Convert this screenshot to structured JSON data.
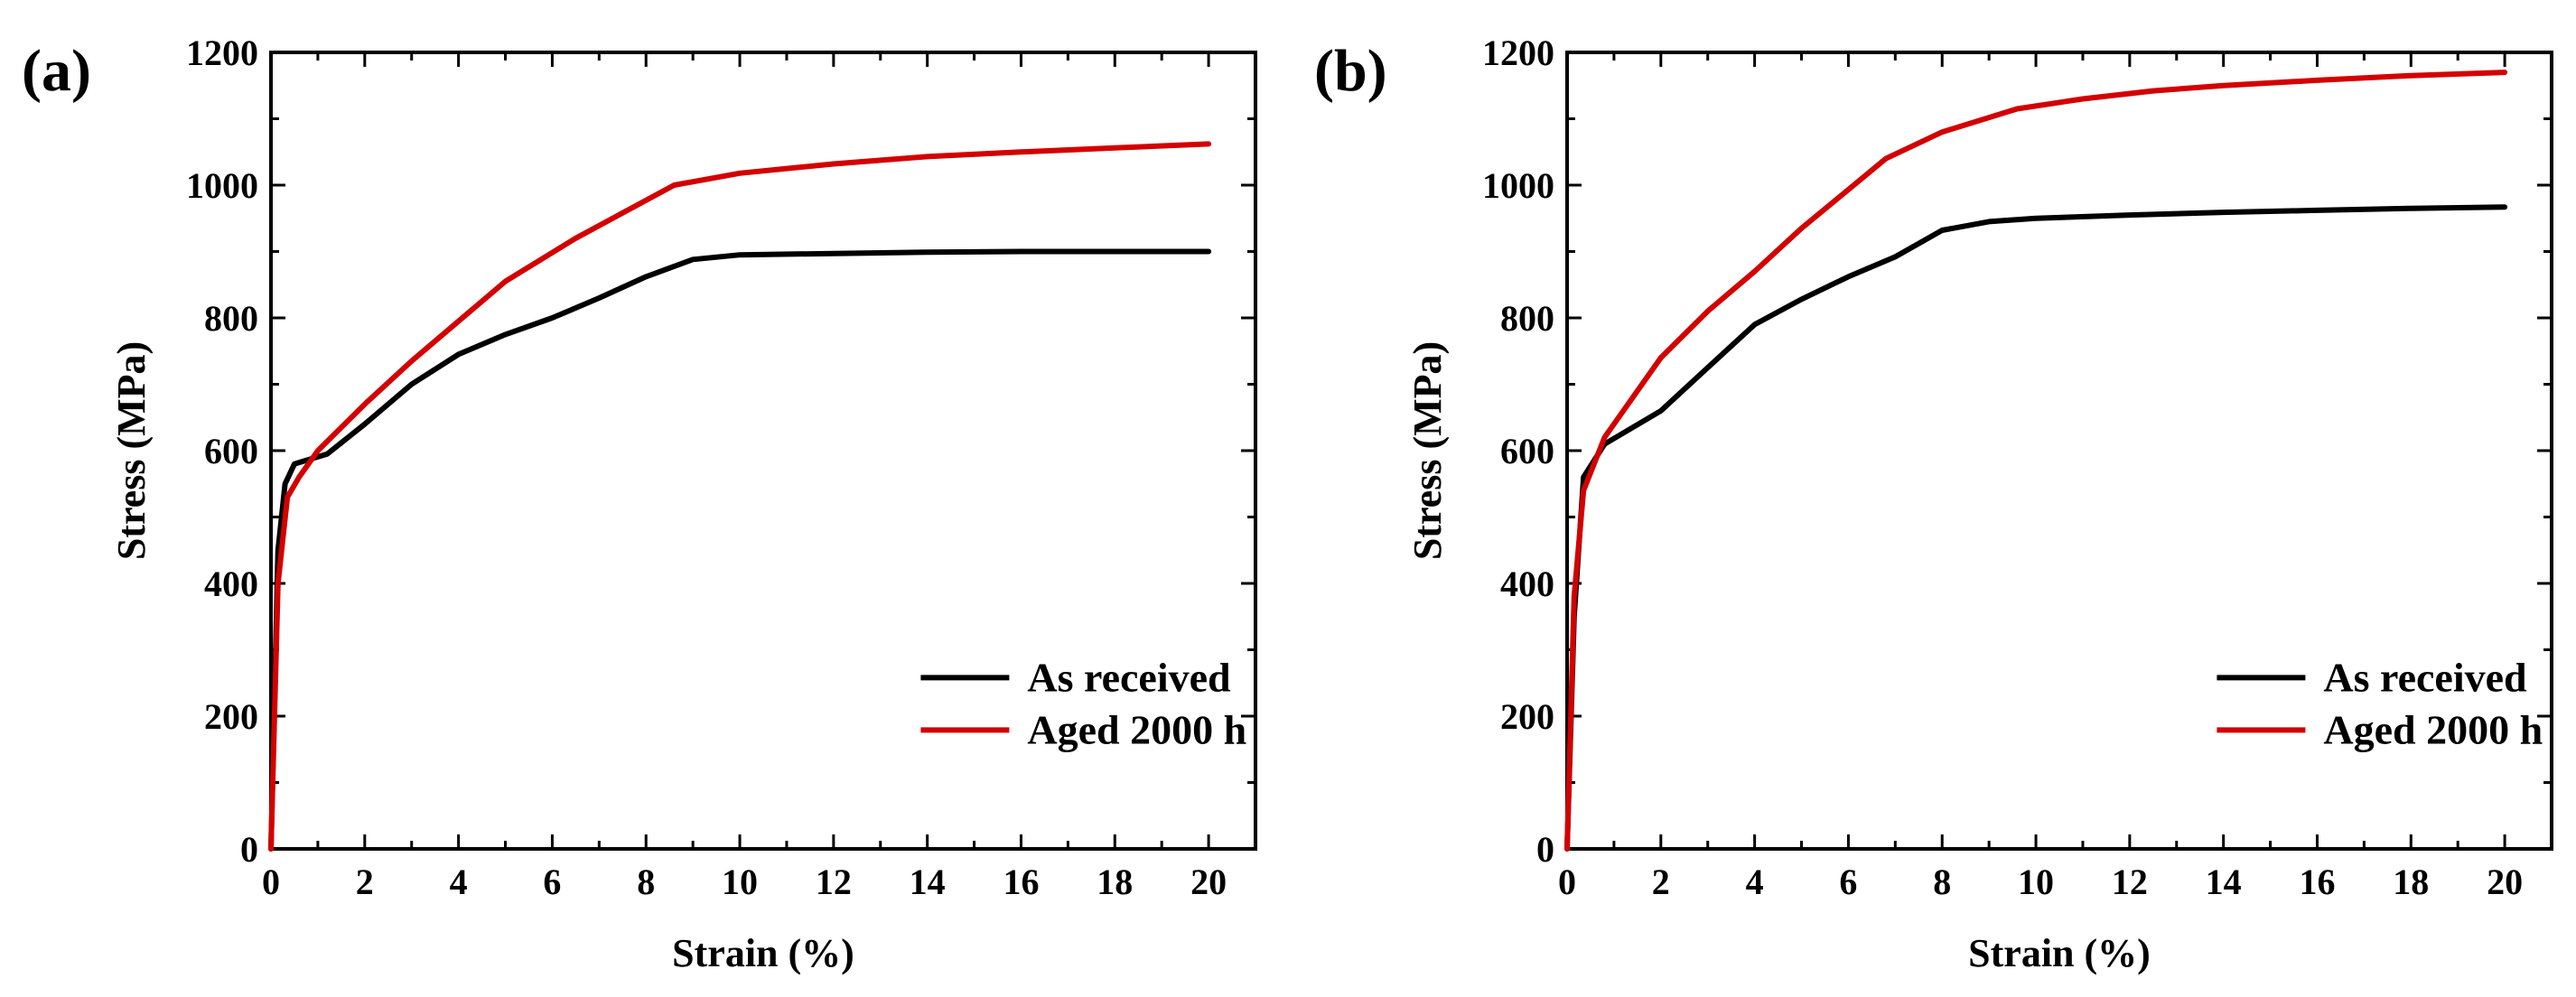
{
  "colors": {
    "as_received": "#000000",
    "aged": "#d40000"
  },
  "chart_data": [
    {
      "panel_label": "(a)",
      "type": "line",
      "xlabel": "Strain (%)",
      "ylabel": "Stress (MPa)",
      "xlim": [
        0,
        21
      ],
      "ylim": [
        0,
        1200
      ],
      "xticks": [
        0,
        2,
        4,
        6,
        8,
        10,
        12,
        14,
        16,
        18,
        20
      ],
      "yticks": [
        0,
        200,
        400,
        600,
        800,
        1000,
        1200
      ],
      "legend_position": "bottom-right",
      "series": [
        {
          "name": "As received",
          "color": "#000000",
          "x": [
            0,
            0.15,
            0.3,
            0.5,
            1.2,
            2,
            3,
            4,
            5,
            6,
            7,
            8,
            9,
            10,
            12,
            14,
            16,
            18,
            20
          ],
          "y": [
            0,
            450,
            550,
            580,
            595,
            640,
            700,
            745,
            775,
            800,
            830,
            862,
            888,
            895,
            897,
            899,
            900,
            900,
            900
          ]
        },
        {
          "name": "Aged 2000 h",
          "color": "#d40000",
          "x": [
            0,
            0.15,
            0.35,
            0.6,
            1,
            2,
            3,
            4,
            5,
            6.5,
            8.6,
            10,
            12,
            14,
            16,
            18,
            20
          ],
          "y": [
            0,
            400,
            530,
            560,
            600,
            670,
            735,
            795,
            855,
            920,
            1000,
            1018,
            1032,
            1043,
            1050,
            1056,
            1062
          ]
        }
      ]
    },
    {
      "panel_label": "(b)",
      "type": "line",
      "xlabel": "Strain (%)",
      "ylabel": "Stress (MPa)",
      "xlim": [
        0,
        21
      ],
      "ylim": [
        0,
        1200
      ],
      "xticks": [
        0,
        2,
        4,
        6,
        8,
        10,
        12,
        14,
        16,
        18,
        20
      ],
      "yticks": [
        0,
        200,
        400,
        600,
        800,
        1000,
        1200
      ],
      "legend_position": "bottom-right",
      "series": [
        {
          "name": "As received",
          "color": "#000000",
          "x": [
            0,
            0.15,
            0.35,
            0.8,
            2,
            3,
            4,
            5,
            6,
            7,
            8,
            9,
            10,
            12,
            14,
            16,
            18,
            20
          ],
          "y": [
            0,
            350,
            560,
            610,
            660,
            725,
            790,
            828,
            862,
            892,
            932,
            945,
            950,
            955,
            959,
            962,
            965,
            967
          ]
        },
        {
          "name": "Aged 2000 h",
          "color": "#d40000",
          "x": [
            0,
            0.15,
            0.35,
            0.8,
            2,
            3,
            4,
            5,
            6.8,
            8,
            9.6,
            11,
            12.5,
            14,
            16,
            18,
            20
          ],
          "y": [
            0,
            380,
            540,
            620,
            740,
            810,
            870,
            935,
            1040,
            1080,
            1115,
            1130,
            1142,
            1150,
            1158,
            1165,
            1170
          ]
        }
      ]
    }
  ]
}
